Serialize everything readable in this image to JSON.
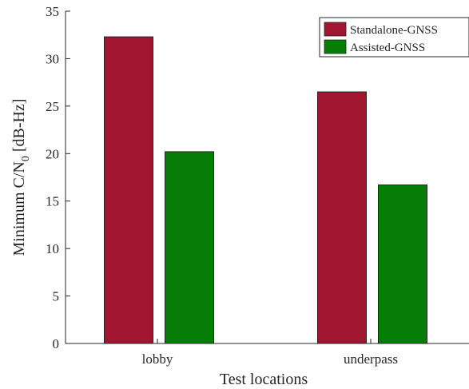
{
  "chart_data": {
    "type": "bar",
    "categories": [
      "lobby",
      "underpass"
    ],
    "series": [
      {
        "name": "Standalone-GNSS",
        "color": "#a01530",
        "values": [
          32.3,
          26.5
        ]
      },
      {
        "name": "Assisted-GNSS",
        "color": "#067d06",
        "values": [
          20.2,
          16.7
        ]
      }
    ],
    "xlabel": "Test locations",
    "ylabel": {
      "prefix": "Minimum C/N",
      "subscript": "0",
      "suffix": " [dB-Hz]"
    },
    "ylim": [
      0,
      35
    ],
    "yticks": [
      "0",
      "5",
      "10",
      "15",
      "20",
      "25",
      "30",
      "35"
    ],
    "legend_position": "top-right",
    "grid": false
  }
}
